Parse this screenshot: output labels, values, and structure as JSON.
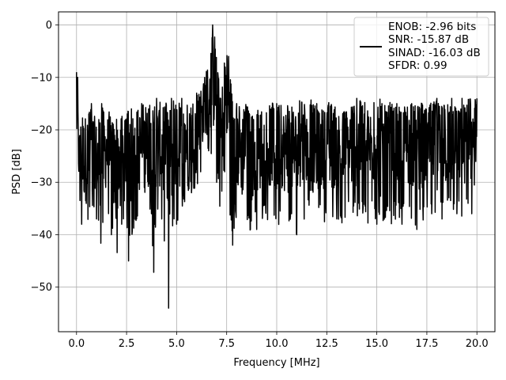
{
  "chart_data": {
    "type": "line",
    "title": "",
    "xlabel": "Frequency [MHz]",
    "ylabel": "PSD [dB]",
    "xlim": [
      -0.9,
      20.9
    ],
    "ylim": [
      -58.5,
      2.5
    ],
    "xticks": [
      0.0,
      2.5,
      5.0,
      7.5,
      10.0,
      12.5,
      15.0,
      17.5,
      20.0
    ],
    "xtick_labels": [
      "0.0",
      "2.5",
      "5.0",
      "7.5",
      "10.0",
      "12.5",
      "15.0",
      "17.5",
      "20.0"
    ],
    "yticks": [
      0,
      -10,
      -20,
      -30,
      -40,
      -50
    ],
    "ytick_labels": [
      "0",
      "−10",
      "−20",
      "−30",
      "−40",
      "−50"
    ],
    "grid": true,
    "legend_position": "top-right",
    "legend_lines": [
      "ENOB: -2.96 bits",
      "SNR: -15.87 dB",
      "SINAD: -16.03 dB",
      "SFDR: 0.99"
    ],
    "series": [
      {
        "color": "#000000",
        "x_range": [
          0,
          20
        ],
        "x": [
          0,
          0.05,
          0.1,
          0.25,
          0.5,
          0.75,
          1,
          1.25,
          1.5,
          1.75,
          2,
          2.1,
          2.25,
          2.5,
          2.6,
          2.75,
          3,
          3.25,
          3.5,
          3.75,
          3.9,
          4,
          4.25,
          4.5,
          4.6,
          4.75,
          5,
          5.25,
          5.5,
          5.75,
          6,
          6.2,
          6.4,
          6.5,
          6.6,
          6.7,
          6.8,
          6.9,
          7,
          7.1,
          7.2,
          7.3,
          7.4,
          7.5,
          7.6,
          7.7,
          7.8,
          7.9,
          8,
          8.25,
          8.5,
          8.75,
          9,
          9.25,
          9.5,
          9.75,
          10,
          10.25,
          10.5,
          10.75,
          11,
          11.25,
          11.5,
          11.75,
          12,
          12.25,
          12.5,
          12.75,
          13,
          13.25,
          13.5,
          13.75,
          14,
          14.25,
          14.5,
          14.75,
          15,
          15.25,
          15.5,
          15.75,
          16,
          16.25,
          16.5,
          16.75,
          17,
          17.25,
          17.5,
          17.75,
          18,
          18.25,
          18.5,
          18.75,
          19,
          19.25,
          19.5,
          19.75,
          20
        ],
        "upper": [
          -9,
          -10,
          -20,
          -17,
          -16,
          -15,
          -18,
          -15,
          -16,
          -17,
          -18,
          -17,
          -16,
          -17,
          -15,
          -16,
          -15,
          -15,
          -15,
          -15,
          -15,
          -14,
          -14,
          -15,
          -16,
          -14,
          -15,
          -14,
          -14,
          -13,
          -13,
          -12,
          -10,
          -8,
          -6,
          -3,
          0,
          -2,
          -5,
          -10,
          -14,
          -9,
          -5,
          -5,
          -6,
          -10,
          -14,
          -15,
          -15,
          -15,
          -15,
          -16,
          -16,
          -15,
          -15,
          -14,
          -15,
          -15,
          -15,
          -15,
          -15,
          -14,
          -15,
          -14,
          -15,
          -15,
          -15,
          -14,
          -15,
          -15,
          -15,
          -14,
          -14,
          -14,
          -15,
          -15,
          -14,
          -14,
          -15,
          -14,
          -15,
          -15,
          -15,
          -15,
          -14,
          -15,
          -15,
          -14,
          -14,
          -15,
          -15,
          -14,
          -15,
          -14,
          -14,
          -14,
          -14
        ],
        "lower": [
          -27,
          -36,
          -33,
          -38,
          -41,
          -35,
          -37,
          -43,
          -36,
          -40,
          -47,
          -39,
          -38,
          -37,
          -45,
          -41,
          -37,
          -39,
          -38,
          -36,
          -56,
          -38,
          -37,
          -47,
          -54,
          -41,
          -38,
          -37,
          -33,
          -32,
          -31,
          -28,
          -26,
          -24,
          -24,
          -23,
          -29,
          -25,
          -30,
          -33,
          -36,
          -33,
          -28,
          -28,
          -32,
          -40,
          -42,
          -38,
          -37,
          -40,
          -38,
          -40,
          -39,
          -37,
          -38,
          -37,
          -40,
          -37,
          -39,
          -38,
          -40,
          -38,
          -36,
          -39,
          -38,
          -37,
          -38,
          -38,
          -37,
          -39,
          -36,
          -38,
          -37,
          -36,
          -39,
          -36,
          -38,
          -41,
          -37,
          -38,
          -37,
          -38,
          -36,
          -37,
          -39,
          -38,
          -37,
          -36,
          -38,
          -37,
          -36,
          -37,
          -36,
          -37,
          -36,
          -36,
          -27
        ]
      }
    ]
  }
}
